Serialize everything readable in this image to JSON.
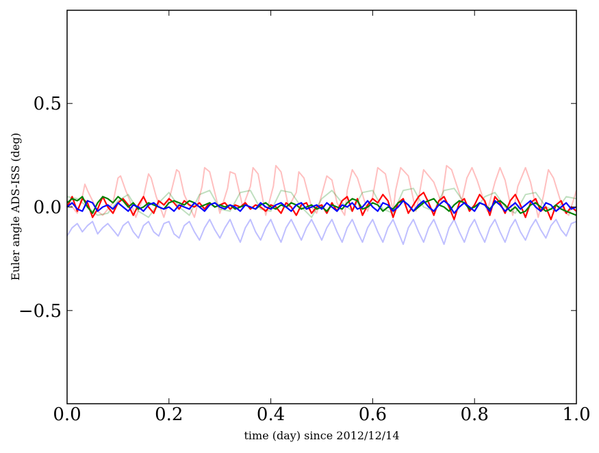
{
  "chart_data": {
    "type": "line",
    "title": "",
    "xlabel": "time (day) since 2012/12/14",
    "ylabel": "Euler angle ADS-ISS (deg)",
    "xlim": [
      0.0,
      1.0
    ],
    "ylim": [
      -0.95,
      0.95
    ],
    "grid": false,
    "legend": "none",
    "x_ticks": [
      {
        "value": 0.0,
        "label": "0.0"
      },
      {
        "value": 0.2,
        "label": "0.2"
      },
      {
        "value": 0.4,
        "label": "0.4"
      },
      {
        "value": 0.6,
        "label": "0.6"
      },
      {
        "value": 0.8,
        "label": "0.8"
      },
      {
        "value": 1.0,
        "label": "1.0"
      }
    ],
    "y_ticks": [
      {
        "value": 0.5,
        "label": "0.5"
      },
      {
        "value": 0.0,
        "label": "0.0"
      },
      {
        "value": -0.5,
        "label": "−0.5"
      }
    ],
    "series": [
      {
        "color": "#ff0000",
        "opacity": 0.25,
        "x": [
          0.0,
          0.01,
          0.02,
          0.03,
          0.035,
          0.04,
          0.05,
          0.06,
          0.07,
          0.09,
          0.1,
          0.105,
          0.115,
          0.125,
          0.135,
          0.15,
          0.16,
          0.165,
          0.175,
          0.19,
          0.205,
          0.215,
          0.22,
          0.23,
          0.25,
          0.265,
          0.27,
          0.28,
          0.3,
          0.315,
          0.32,
          0.33,
          0.345,
          0.36,
          0.365,
          0.375,
          0.39,
          0.405,
          0.41,
          0.42,
          0.435,
          0.45,
          0.455,
          0.465,
          0.48,
          0.49,
          0.5,
          0.51,
          0.52,
          0.53,
          0.545,
          0.55,
          0.56,
          0.57,
          0.59,
          0.6,
          0.61,
          0.625,
          0.64,
          0.645,
          0.655,
          0.67,
          0.685,
          0.69,
          0.7,
          0.72,
          0.735,
          0.745,
          0.755,
          0.775,
          0.785,
          0.795,
          0.805,
          0.825,
          0.84,
          0.85,
          0.86,
          0.875,
          0.885,
          0.9,
          0.91,
          0.925,
          0.935,
          0.945,
          0.955,
          0.975,
          0.985,
          1.0
        ],
        "values": [
          0.03,
          0.0,
          -0.03,
          0.05,
          0.11,
          0.08,
          0.03,
          -0.02,
          -0.04,
          0.02,
          0.14,
          0.15,
          0.08,
          0.02,
          -0.05,
          0.05,
          0.16,
          0.14,
          0.05,
          -0.05,
          0.08,
          0.18,
          0.17,
          0.06,
          -0.05,
          0.1,
          0.19,
          0.17,
          -0.03,
          0.09,
          0.17,
          0.16,
          0.0,
          0.1,
          0.19,
          0.16,
          -0.04,
          0.1,
          0.2,
          0.17,
          0.0,
          0.07,
          0.17,
          0.14,
          0.0,
          -0.03,
          0.06,
          0.15,
          0.13,
          0.02,
          -0.04,
          0.08,
          0.18,
          0.14,
          -0.02,
          0.05,
          0.19,
          0.16,
          -0.02,
          0.08,
          0.19,
          0.15,
          -0.02,
          0.04,
          0.18,
          0.12,
          0.02,
          0.2,
          0.18,
          0.03,
          0.14,
          0.19,
          0.13,
          -0.02,
          0.12,
          0.19,
          0.13,
          -0.04,
          0.1,
          0.19,
          0.12,
          -0.05,
          0.05,
          0.18,
          0.14,
          -0.02,
          -0.04,
          0.08
        ]
      },
      {
        "color": "#008000",
        "opacity": 0.25,
        "x": [
          0.0,
          0.02,
          0.04,
          0.06,
          0.08,
          0.1,
          0.12,
          0.14,
          0.16,
          0.18,
          0.2,
          0.22,
          0.24,
          0.26,
          0.28,
          0.3,
          0.32,
          0.34,
          0.36,
          0.38,
          0.4,
          0.42,
          0.44,
          0.46,
          0.48,
          0.5,
          0.52,
          0.54,
          0.56,
          0.58,
          0.6,
          0.62,
          0.64,
          0.66,
          0.68,
          0.7,
          0.72,
          0.74,
          0.76,
          0.78,
          0.8,
          0.82,
          0.84,
          0.86,
          0.88,
          0.9,
          0.92,
          0.94,
          0.96,
          0.98,
          1.0
        ],
        "values": [
          0.05,
          0.04,
          0.0,
          -0.04,
          -0.03,
          0.03,
          0.06,
          -0.02,
          -0.05,
          0.02,
          0.07,
          0.0,
          -0.04,
          0.06,
          0.08,
          -0.01,
          -0.02,
          0.07,
          0.08,
          -0.01,
          -0.02,
          0.08,
          0.07,
          0.0,
          -0.05,
          0.04,
          0.08,
          0.02,
          -0.02,
          0.07,
          0.08,
          -0.01,
          -0.03,
          0.08,
          0.09,
          0.0,
          -0.02,
          0.08,
          0.09,
          0.02,
          -0.02,
          0.05,
          0.07,
          0.0,
          -0.03,
          0.06,
          0.07,
          0.0,
          -0.02,
          0.05,
          0.04
        ]
      },
      {
        "color": "#0000ff",
        "opacity": 0.25,
        "x": [
          0.0,
          0.01,
          0.02,
          0.03,
          0.04,
          0.05,
          0.06,
          0.07,
          0.08,
          0.09,
          0.1,
          0.11,
          0.12,
          0.13,
          0.14,
          0.15,
          0.16,
          0.17,
          0.18,
          0.19,
          0.2,
          0.21,
          0.22,
          0.23,
          0.24,
          0.25,
          0.26,
          0.27,
          0.28,
          0.29,
          0.3,
          0.31,
          0.32,
          0.33,
          0.34,
          0.35,
          0.36,
          0.37,
          0.38,
          0.39,
          0.4,
          0.41,
          0.42,
          0.43,
          0.44,
          0.45,
          0.46,
          0.47,
          0.48,
          0.49,
          0.5,
          0.51,
          0.52,
          0.53,
          0.54,
          0.55,
          0.56,
          0.57,
          0.58,
          0.59,
          0.6,
          0.61,
          0.62,
          0.63,
          0.64,
          0.65,
          0.66,
          0.67,
          0.68,
          0.69,
          0.7,
          0.71,
          0.72,
          0.73,
          0.74,
          0.75,
          0.76,
          0.77,
          0.78,
          0.79,
          0.8,
          0.81,
          0.82,
          0.83,
          0.84,
          0.85,
          0.86,
          0.87,
          0.88,
          0.89,
          0.9,
          0.91,
          0.92,
          0.93,
          0.94,
          0.95,
          0.96,
          0.97,
          0.98,
          0.99,
          1.0
        ],
        "values": [
          -0.14,
          -0.1,
          -0.08,
          -0.12,
          -0.09,
          -0.07,
          -0.13,
          -0.1,
          -0.08,
          -0.11,
          -0.14,
          -0.09,
          -0.07,
          -0.12,
          -0.15,
          -0.09,
          -0.07,
          -0.12,
          -0.14,
          -0.08,
          -0.07,
          -0.13,
          -0.15,
          -0.09,
          -0.07,
          -0.12,
          -0.16,
          -0.1,
          -0.06,
          -0.11,
          -0.15,
          -0.1,
          -0.06,
          -0.12,
          -0.17,
          -0.1,
          -0.06,
          -0.12,
          -0.16,
          -0.1,
          -0.06,
          -0.12,
          -0.17,
          -0.1,
          -0.06,
          -0.11,
          -0.16,
          -0.1,
          -0.06,
          -0.11,
          -0.16,
          -0.1,
          -0.06,
          -0.12,
          -0.17,
          -0.1,
          -0.06,
          -0.12,
          -0.17,
          -0.1,
          -0.06,
          -0.12,
          -0.17,
          -0.1,
          -0.06,
          -0.12,
          -0.18,
          -0.1,
          -0.06,
          -0.12,
          -0.17,
          -0.1,
          -0.06,
          -0.12,
          -0.18,
          -0.1,
          -0.06,
          -0.12,
          -0.17,
          -0.1,
          -0.06,
          -0.12,
          -0.17,
          -0.1,
          -0.06,
          -0.12,
          -0.17,
          -0.1,
          -0.06,
          -0.12,
          -0.16,
          -0.1,
          -0.06,
          -0.11,
          -0.15,
          -0.09,
          -0.06,
          -0.11,
          -0.14,
          -0.08,
          -0.07
        ]
      },
      {
        "color": "#ff0000",
        "opacity": 1,
        "x": [
          0.0,
          0.01,
          0.02,
          0.03,
          0.04,
          0.05,
          0.06,
          0.07,
          0.08,
          0.09,
          0.1,
          0.11,
          0.12,
          0.13,
          0.14,
          0.15,
          0.16,
          0.17,
          0.18,
          0.19,
          0.2,
          0.21,
          0.22,
          0.23,
          0.24,
          0.25,
          0.26,
          0.27,
          0.28,
          0.29,
          0.3,
          0.31,
          0.32,
          0.33,
          0.34,
          0.35,
          0.36,
          0.37,
          0.38,
          0.39,
          0.4,
          0.41,
          0.42,
          0.43,
          0.44,
          0.45,
          0.46,
          0.47,
          0.48,
          0.49,
          0.5,
          0.51,
          0.52,
          0.53,
          0.54,
          0.55,
          0.56,
          0.57,
          0.58,
          0.59,
          0.6,
          0.61,
          0.62,
          0.63,
          0.64,
          0.65,
          0.66,
          0.67,
          0.68,
          0.69,
          0.7,
          0.71,
          0.72,
          0.73,
          0.74,
          0.75,
          0.76,
          0.77,
          0.78,
          0.79,
          0.8,
          0.81,
          0.82,
          0.83,
          0.84,
          0.85,
          0.86,
          0.87,
          0.88,
          0.89,
          0.9,
          0.91,
          0.92,
          0.93,
          0.94,
          0.95,
          0.96,
          0.97,
          0.98,
          0.99,
          1.0
        ],
        "values": [
          0.0,
          0.05,
          -0.02,
          0.04,
          0.02,
          -0.05,
          -0.01,
          0.05,
          0.0,
          -0.03,
          0.02,
          0.04,
          0.01,
          -0.04,
          0.01,
          0.05,
          0.0,
          -0.03,
          0.03,
          0.01,
          0.04,
          0.02,
          -0.01,
          0.03,
          0.01,
          0.0,
          0.02,
          -0.01,
          0.02,
          0.0,
          0.01,
          0.02,
          -0.01,
          0.01,
          0.0,
          0.02,
          -0.01,
          0.01,
          0.0,
          -0.02,
          0.01,
          0.0,
          -0.03,
          0.02,
          0.0,
          -0.04,
          0.01,
          0.02,
          -0.03,
          0.0,
          0.01,
          -0.03,
          0.02,
          -0.02,
          0.03,
          0.05,
          -0.02,
          0.04,
          -0.04,
          0.01,
          0.04,
          0.02,
          0.06,
          0.03,
          -0.05,
          0.02,
          0.04,
          -0.03,
          0.01,
          0.05,
          0.07,
          0.02,
          -0.04,
          0.03,
          0.05,
          0.0,
          -0.06,
          0.02,
          0.04,
          -0.02,
          0.01,
          0.06,
          0.03,
          -0.04,
          0.05,
          0.02,
          -0.03,
          0.03,
          0.06,
          0.01,
          -0.05,
          0.02,
          0.04,
          -0.02,
          0.0,
          -0.06,
          0.01,
          0.03,
          -0.03,
          0.0,
          -0.02
        ]
      },
      {
        "color": "#008000",
        "opacity": 1,
        "x": [
          0.0,
          0.01,
          0.02,
          0.03,
          0.04,
          0.05,
          0.06,
          0.07,
          0.08,
          0.09,
          0.1,
          0.11,
          0.12,
          0.13,
          0.14,
          0.15,
          0.16,
          0.17,
          0.18,
          0.19,
          0.2,
          0.21,
          0.22,
          0.23,
          0.24,
          0.25,
          0.26,
          0.27,
          0.28,
          0.29,
          0.3,
          0.31,
          0.32,
          0.33,
          0.34,
          0.35,
          0.36,
          0.37,
          0.38,
          0.39,
          0.4,
          0.41,
          0.42,
          0.43,
          0.44,
          0.45,
          0.46,
          0.47,
          0.48,
          0.49,
          0.5,
          0.51,
          0.52,
          0.53,
          0.54,
          0.55,
          0.56,
          0.57,
          0.58,
          0.59,
          0.6,
          0.61,
          0.62,
          0.63,
          0.64,
          0.65,
          0.66,
          0.67,
          0.68,
          0.69,
          0.7,
          0.71,
          0.72,
          0.73,
          0.74,
          0.75,
          0.76,
          0.77,
          0.78,
          0.79,
          0.8,
          0.81,
          0.82,
          0.83,
          0.84,
          0.85,
          0.86,
          0.87,
          0.88,
          0.89,
          0.9,
          0.91,
          0.92,
          0.93,
          0.94,
          0.95,
          0.96,
          0.97,
          0.98,
          0.99,
          1.0
        ],
        "values": [
          0.02,
          0.04,
          0.03,
          0.05,
          0.0,
          -0.03,
          0.02,
          0.05,
          0.04,
          0.02,
          0.05,
          0.03,
          0.0,
          0.02,
          -0.01,
          0.0,
          0.02,
          0.01,
          0.0,
          -0.01,
          0.02,
          0.03,
          0.02,
          0.01,
          0.03,
          0.02,
          0.0,
          0.01,
          0.02,
          0.0,
          0.01,
          0.0,
          0.01,
          -0.01,
          0.0,
          0.01,
          0.0,
          -0.01,
          0.01,
          0.02,
          0.0,
          -0.01,
          0.01,
          0.0,
          0.02,
          0.01,
          -0.01,
          0.0,
          0.01,
          -0.01,
          0.0,
          -0.02,
          0.01,
          0.0,
          -0.01,
          0.02,
          0.04,
          0.03,
          -0.01,
          0.0,
          0.02,
          0.01,
          -0.02,
          0.0,
          -0.01,
          0.02,
          0.03,
          0.01,
          -0.02,
          0.0,
          0.02,
          0.03,
          0.04,
          0.01,
          0.0,
          -0.02,
          0.01,
          0.03,
          0.02,
          -0.01,
          0.0,
          0.02,
          0.01,
          -0.01,
          0.02,
          0.03,
          0.01,
          -0.02,
          0.0,
          -0.03,
          -0.02,
          0.01,
          0.02,
          0.0,
          -0.02,
          -0.01,
          0.01,
          -0.01,
          -0.02,
          -0.03,
          -0.04
        ]
      },
      {
        "color": "#0000ff",
        "opacity": 1,
        "x": [
          0.0,
          0.01,
          0.02,
          0.03,
          0.04,
          0.05,
          0.06,
          0.07,
          0.08,
          0.09,
          0.1,
          0.11,
          0.12,
          0.13,
          0.14,
          0.15,
          0.16,
          0.17,
          0.18,
          0.19,
          0.2,
          0.21,
          0.22,
          0.23,
          0.24,
          0.25,
          0.26,
          0.27,
          0.28,
          0.29,
          0.3,
          0.31,
          0.32,
          0.33,
          0.34,
          0.35,
          0.36,
          0.37,
          0.38,
          0.39,
          0.4,
          0.41,
          0.42,
          0.43,
          0.44,
          0.45,
          0.46,
          0.47,
          0.48,
          0.49,
          0.5,
          0.51,
          0.52,
          0.53,
          0.54,
          0.55,
          0.56,
          0.57,
          0.58,
          0.59,
          0.6,
          0.61,
          0.62,
          0.63,
          0.64,
          0.65,
          0.66,
          0.67,
          0.68,
          0.69,
          0.7,
          0.71,
          0.72,
          0.73,
          0.74,
          0.75,
          0.76,
          0.77,
          0.78,
          0.79,
          0.8,
          0.81,
          0.82,
          0.83,
          0.84,
          0.85,
          0.86,
          0.87,
          0.88,
          0.89,
          0.9,
          0.91,
          0.92,
          0.93,
          0.94,
          0.95,
          0.96,
          0.97,
          0.98,
          0.99,
          1.0
        ],
        "values": [
          0.0,
          0.02,
          -0.01,
          -0.02,
          0.03,
          0.02,
          -0.02,
          0.0,
          0.01,
          -0.01,
          0.02,
          0.0,
          -0.02,
          0.01,
          0.0,
          -0.02,
          0.01,
          0.02,
          0.0,
          -0.01,
          0.0,
          -0.02,
          0.01,
          0.0,
          -0.01,
          0.02,
          0.0,
          -0.02,
          0.01,
          0.02,
          0.0,
          -0.01,
          0.01,
          0.0,
          -0.02,
          0.01,
          0.0,
          -0.01,
          0.02,
          0.0,
          -0.01,
          0.01,
          0.02,
          0.0,
          -0.02,
          0.01,
          0.02,
          -0.01,
          0.0,
          0.01,
          -0.01,
          0.02,
          0.0,
          -0.02,
          0.01,
          0.0,
          0.02,
          -0.01,
          0.0,
          0.03,
          0.0,
          -0.02,
          0.02,
          0.01,
          -0.02,
          0.0,
          0.03,
          0.01,
          -0.02,
          0.01,
          0.03,
          0.0,
          -0.02,
          0.01,
          0.03,
          0.01,
          -0.03,
          0.0,
          0.02,
          0.0,
          -0.02,
          0.02,
          0.01,
          -0.02,
          0.03,
          0.01,
          -0.02,
          0.0,
          0.02,
          -0.01,
          0.01,
          0.03,
          0.0,
          -0.02,
          0.02,
          0.01,
          -0.02,
          0.0,
          0.02,
          -0.01,
          0.0
        ]
      }
    ]
  }
}
